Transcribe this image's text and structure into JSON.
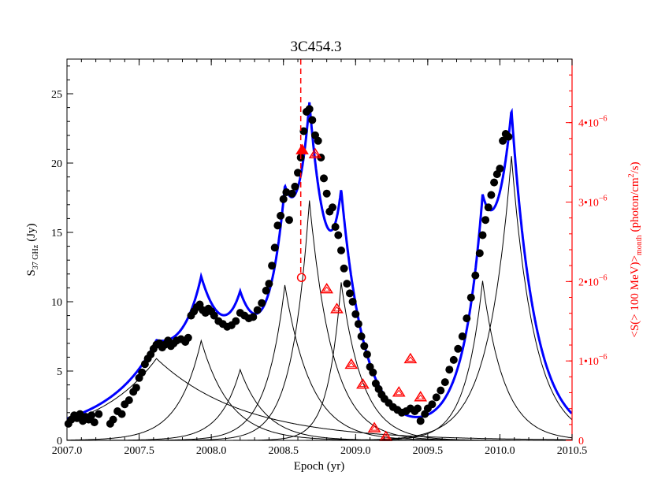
{
  "chart_data": {
    "type": "scatter",
    "title": "3C454.3",
    "xlabel": "Epoch (yr)",
    "ylabel": "S",
    "ylabel_sub": "37 GHz",
    "ylabel_unit": "(Jy)",
    "y2label_parts": {
      "main": "<S(> 100 MeV)>",
      "sub": "month",
      "unit_pre": "(photon/cm",
      "unit_sup": "2",
      "unit_post": "/s)"
    },
    "xlim": [
      2007.0,
      2010.5
    ],
    "ylim": [
      0,
      27.5
    ],
    "y2lim": [
      0,
      4.8
    ],
    "x_ticks": [
      2007.0,
      2007.5,
      2008.0,
      2008.5,
      2009.0,
      2009.5,
      2010.0,
      2010.5
    ],
    "x_tick_labels": [
      "2007.0",
      "2007.5",
      "2008.0",
      "2008.5",
      "2009.0",
      "2009.5",
      "2010.0",
      "2010.5"
    ],
    "y_ticks": [
      0,
      5,
      10,
      15,
      20,
      25
    ],
    "y_tick_labels": [
      "0",
      "5",
      "10",
      "15",
      "20",
      "25"
    ],
    "y2_ticks": [
      0,
      1,
      2,
      3,
      4
    ],
    "y2_tick_labels": [
      "0",
      "1•10",
      "2•10",
      "3•10",
      "4•10"
    ],
    "y2_tick_exp": "−6",
    "vline_x": 2008.62,
    "colors": {
      "radio": "#000000",
      "fit": "#0000ff",
      "gamma": "#ff0000",
      "components": "#000000"
    },
    "flares": [
      {
        "t0": 2007.62,
        "a": 5.9,
        "k_rise": 0.42,
        "k_decay": 0.6
      },
      {
        "t0": 2007.93,
        "a": 7.2,
        "k_rise": 0.16,
        "k_decay": 0.2
      },
      {
        "t0": 2008.2,
        "a": 5.1,
        "k_rise": 0.14,
        "k_decay": 0.18
      },
      {
        "t0": 2008.51,
        "a": 11.2,
        "k_rise": 0.13,
        "k_decay": 0.18
      },
      {
        "t0": 2008.68,
        "a": 17.3,
        "k_rise": 0.12,
        "k_decay": 0.16
      },
      {
        "t0": 2008.9,
        "a": 11.4,
        "k_rise": 0.09,
        "k_decay": 0.15
      },
      {
        "t0": 2009.88,
        "a": 11.5,
        "k_rise": 0.12,
        "k_decay": 0.15
      },
      {
        "t0": 2010.08,
        "a": 20.5,
        "k_rise": 0.16,
        "k_decay": 0.16
      }
    ],
    "radio_points": [
      [
        2007.01,
        1.2
      ],
      [
        2007.03,
        1.5
      ],
      [
        2007.05,
        1.8
      ],
      [
        2007.07,
        1.6
      ],
      [
        2007.09,
        1.9
      ],
      [
        2007.11,
        1.4
      ],
      [
        2007.13,
        1.7
      ],
      [
        2007.15,
        1.5
      ],
      [
        2007.17,
        1.8
      ],
      [
        2007.19,
        1.3
      ],
      [
        2007.22,
        1.9
      ],
      [
        2007.3,
        1.2
      ],
      [
        2007.32,
        1.5
      ],
      [
        2007.35,
        2.1
      ],
      [
        2007.38,
        1.9
      ],
      [
        2007.4,
        2.6
      ],
      [
        2007.43,
        2.9
      ],
      [
        2007.46,
        3.5
      ],
      [
        2007.48,
        3.8
      ],
      [
        2007.5,
        4.5
      ],
      [
        2007.52,
        4.9
      ],
      [
        2007.54,
        5.5
      ],
      [
        2007.56,
        5.9
      ],
      [
        2007.58,
        6.2
      ],
      [
        2007.6,
        6.6
      ],
      [
        2007.62,
        6.9
      ],
      [
        2007.64,
        7.0
      ],
      [
        2007.66,
        6.7
      ],
      [
        2007.68,
        6.9
      ],
      [
        2007.7,
        7.2
      ],
      [
        2007.72,
        6.8
      ],
      [
        2007.74,
        7.0
      ],
      [
        2007.76,
        7.2
      ],
      [
        2007.79,
        7.3
      ],
      [
        2007.82,
        7.1
      ],
      [
        2007.84,
        7.4
      ],
      [
        2007.86,
        9.0
      ],
      [
        2007.88,
        9.3
      ],
      [
        2007.9,
        9.6
      ],
      [
        2007.92,
        9.8
      ],
      [
        2007.94,
        9.4
      ],
      [
        2007.96,
        9.2
      ],
      [
        2007.98,
        9.5
      ],
      [
        2008.0,
        9.3
      ],
      [
        2008.02,
        9.0
      ],
      [
        2008.05,
        8.6
      ],
      [
        2008.08,
        8.4
      ],
      [
        2008.11,
        8.2
      ],
      [
        2008.14,
        8.3
      ],
      [
        2008.17,
        8.6
      ],
      [
        2008.2,
        9.2
      ],
      [
        2008.23,
        9.0
      ],
      [
        2008.26,
        8.8
      ],
      [
        2008.29,
        8.9
      ],
      [
        2008.32,
        9.4
      ],
      [
        2008.35,
        9.9
      ],
      [
        2008.38,
        10.8
      ],
      [
        2008.4,
        11.3
      ],
      [
        2008.42,
        12.6
      ],
      [
        2008.44,
        13.9
      ],
      [
        2008.46,
        15.5
      ],
      [
        2008.48,
        16.2
      ],
      [
        2008.5,
        17.4
      ],
      [
        2008.52,
        17.9
      ],
      [
        2008.54,
        15.9
      ],
      [
        2008.56,
        17.8
      ],
      [
        2008.58,
        18.3
      ],
      [
        2008.6,
        19.3
      ],
      [
        2008.62,
        20.4
      ],
      [
        2008.64,
        22.3
      ],
      [
        2008.66,
        23.7
      ],
      [
        2008.68,
        23.9
      ],
      [
        2008.7,
        23.1
      ],
      [
        2008.72,
        22.0
      ],
      [
        2008.74,
        21.6
      ],
      [
        2008.76,
        20.4
      ],
      [
        2008.78,
        18.9
      ],
      [
        2008.8,
        17.8
      ],
      [
        2008.82,
        16.5
      ],
      [
        2008.84,
        16.8
      ],
      [
        2008.86,
        15.4
      ],
      [
        2008.88,
        14.8
      ],
      [
        2008.9,
        13.7
      ],
      [
        2008.92,
        12.4
      ],
      [
        2008.94,
        11.3
      ],
      [
        2008.96,
        10.6
      ],
      [
        2008.98,
        10.0
      ],
      [
        2009.0,
        9.1
      ],
      [
        2009.02,
        8.4
      ],
      [
        2009.04,
        7.5
      ],
      [
        2009.06,
        6.8
      ],
      [
        2009.08,
        6.2
      ],
      [
        2009.1,
        5.3
      ],
      [
        2009.12,
        4.9
      ],
      [
        2009.14,
        4.1
      ],
      [
        2009.16,
        3.7
      ],
      [
        2009.18,
        3.3
      ],
      [
        2009.2,
        3.0
      ],
      [
        2009.23,
        2.7
      ],
      [
        2009.26,
        2.4
      ],
      [
        2009.29,
        2.2
      ],
      [
        2009.32,
        2.0
      ],
      [
        2009.35,
        2.1
      ],
      [
        2009.38,
        2.3
      ],
      [
        2009.41,
        2.1
      ],
      [
        2009.43,
        2.3
      ],
      [
        2009.45,
        1.4
      ],
      [
        2009.48,
        1.9
      ],
      [
        2009.5,
        2.3
      ],
      [
        2009.53,
        2.6
      ],
      [
        2009.56,
        3.1
      ],
      [
        2009.59,
        3.6
      ],
      [
        2009.62,
        4.2
      ],
      [
        2009.65,
        5.1
      ],
      [
        2009.68,
        5.8
      ],
      [
        2009.71,
        6.6
      ],
      [
        2009.74,
        7.5
      ],
      [
        2009.77,
        8.8
      ],
      [
        2009.8,
        10.3
      ],
      [
        2009.83,
        11.9
      ],
      [
        2009.86,
        13.5
      ],
      [
        2009.88,
        14.8
      ],
      [
        2009.9,
        15.9
      ],
      [
        2009.92,
        16.8
      ],
      [
        2009.94,
        17.7
      ],
      [
        2009.96,
        18.6
      ],
      [
        2009.98,
        19.2
      ],
      [
        2010.0,
        19.6
      ],
      [
        2010.02,
        21.6
      ],
      [
        2010.04,
        22.1
      ],
      [
        2010.06,
        21.9
      ]
    ],
    "gamma_points": [
      {
        "x": 2008.63,
        "y": 3.65,
        "marker": "filled-triangle"
      },
      {
        "x": 2008.72,
        "y": 3.6,
        "marker": "triangle"
      },
      {
        "x": 2008.8,
        "y": 1.9,
        "marker": "triangle"
      },
      {
        "x": 2008.87,
        "y": 1.65,
        "marker": "triangle"
      },
      {
        "x": 2008.97,
        "y": 0.95,
        "marker": "triangle"
      },
      {
        "x": 2009.05,
        "y": 0.7,
        "marker": "triangle"
      },
      {
        "x": 2009.13,
        "y": 0.15,
        "marker": "triangle"
      },
      {
        "x": 2009.21,
        "y": 0.04,
        "marker": "triangle"
      },
      {
        "x": 2009.3,
        "y": 0.6,
        "marker": "triangle"
      },
      {
        "x": 2009.38,
        "y": 1.02,
        "marker": "triangle"
      },
      {
        "x": 2009.45,
        "y": 0.54,
        "marker": "triangle"
      },
      {
        "x": 2008.625,
        "y": 2.05,
        "marker": "circle"
      }
    ]
  }
}
